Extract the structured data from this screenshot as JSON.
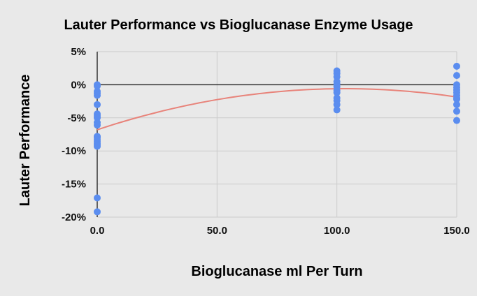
{
  "chart_data": {
    "type": "scatter",
    "title": "Lauter Performance vs Bioglucanase Enzyme Usage",
    "xlabel": "Bioglucanase ml Per Turn",
    "ylabel": "Lauter Performance",
    "xlim": [
      0,
      150
    ],
    "ylim": [
      -20,
      5
    ],
    "x_ticks": [
      "0.0",
      "50.0",
      "100.0",
      "150.0"
    ],
    "y_ticks": [
      "5%",
      "0%",
      "-5%",
      "-10%",
      "-15%",
      "-20%"
    ],
    "x_tick_values": [
      0,
      50,
      100,
      150
    ],
    "y_tick_values": [
      5,
      0,
      -5,
      -10,
      -15,
      -20
    ],
    "grid": true,
    "legend": "none",
    "colors": {
      "points": "#5b8def",
      "trendline": "#e8837a",
      "background": "#e9e9e9",
      "grid": "#cccccc",
      "axis": "#333333"
    },
    "series": [
      {
        "x": [
          0,
          0,
          0,
          0,
          0,
          0,
          0,
          0,
          0,
          0,
          0,
          0,
          0,
          0,
          0,
          0,
          0,
          0,
          0,
          0,
          100,
          100,
          100,
          100,
          100,
          100,
          100,
          100,
          100,
          100,
          100,
          100,
          150,
          150,
          150,
          150,
          150,
          150,
          150,
          150,
          150,
          150,
          150,
          150
        ],
        "y": [
          0,
          -1.0,
          -1.3,
          -1.6,
          -3.0,
          -4.4,
          -4.7,
          -5.0,
          -5.7,
          -6.1,
          -7.8,
          -8.0,
          -8.3,
          -8.6,
          -8.9,
          -9.1,
          -9.3,
          -17.1,
          -19.2,
          -0.2,
          2.1,
          1.7,
          1.2,
          0.5,
          0.1,
          -0.3,
          -0.9,
          -1.2,
          -2.0,
          -2.4,
          -3.0,
          -3.8,
          2.8,
          1.4,
          0.0,
          -0.4,
          -0.8,
          -1.2,
          -1.6,
          -2.0,
          -2.2,
          -3.0,
          -4.0,
          -5.4
        ]
      }
    ],
    "trendline": {
      "type": "polynomial",
      "coefficients": [
        -6.8,
        0.12,
        -0.00058
      ]
    }
  }
}
